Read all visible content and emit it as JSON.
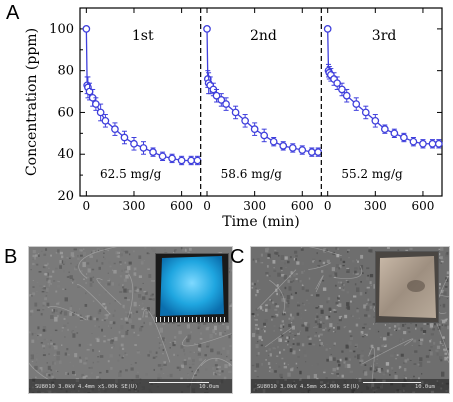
{
  "panels": {
    "a": "A",
    "b": "B",
    "c": "C"
  },
  "chart_data": {
    "type": "scatter",
    "ylabel": "Concentration (ppm)",
    "xlabel": "Time (min)",
    "ylim": [
      20,
      110
    ],
    "yticks": [
      20,
      40,
      60,
      80,
      100
    ],
    "xlim_segment": [
      -40,
      720
    ],
    "xticks": [
      0,
      300,
      600
    ],
    "grid": false,
    "colors": {
      "series": "#3f3fdc",
      "divider": "#000000"
    },
    "segments": [
      {
        "label": "1st",
        "capacity": "62.5 mg/g",
        "x": [
          0,
          5,
          10,
          20,
          40,
          60,
          90,
          120,
          180,
          240,
          300,
          360,
          420,
          480,
          540,
          600,
          660,
          700
        ],
        "y": [
          100,
          73,
          72,
          70,
          67,
          64,
          60,
          56,
          52,
          48,
          45,
          43,
          41,
          39,
          38,
          37,
          37,
          37
        ],
        "err": [
          0,
          4,
          5,
          4,
          4,
          3,
          4,
          3,
          3,
          3,
          3,
          3,
          2,
          2,
          2,
          2,
          2,
          2
        ]
      },
      {
        "label": "2nd",
        "capacity": "58.6 mg/g",
        "x": [
          0,
          5,
          10,
          20,
          40,
          60,
          90,
          120,
          180,
          240,
          300,
          360,
          420,
          480,
          540,
          600,
          660,
          700
        ],
        "y": [
          100,
          76,
          74,
          73,
          71,
          68,
          66,
          64,
          60,
          56,
          52,
          49,
          46,
          44,
          43,
          42,
          41,
          41
        ],
        "err": [
          0,
          4,
          5,
          4,
          3,
          3,
          3,
          3,
          3,
          3,
          3,
          3,
          2,
          2,
          2,
          2,
          2,
          2
        ]
      },
      {
        "label": "3rd",
        "capacity": "55.2 mg/g",
        "x": [
          0,
          5,
          10,
          20,
          40,
          60,
          90,
          120,
          180,
          240,
          300,
          360,
          420,
          480,
          540,
          600,
          660,
          700
        ],
        "y": [
          100,
          80,
          79,
          78,
          76,
          74,
          71,
          68,
          64,
          60,
          56,
          52,
          50,
          48,
          46,
          45,
          45,
          45
        ],
        "err": [
          0,
          3,
          3,
          3,
          3,
          3,
          3,
          3,
          3,
          3,
          3,
          2,
          2,
          2,
          2,
          2,
          2,
          2
        ]
      }
    ]
  },
  "images": {
    "b": {
      "info": "SU8010 3.0kV 4.4mm x5.00k SE(U)",
      "scale": "10.0um"
    },
    "c": {
      "info": "SU8010 3.0kV 4.5mm x5.00k SE(U)",
      "scale": "10.0um"
    }
  }
}
